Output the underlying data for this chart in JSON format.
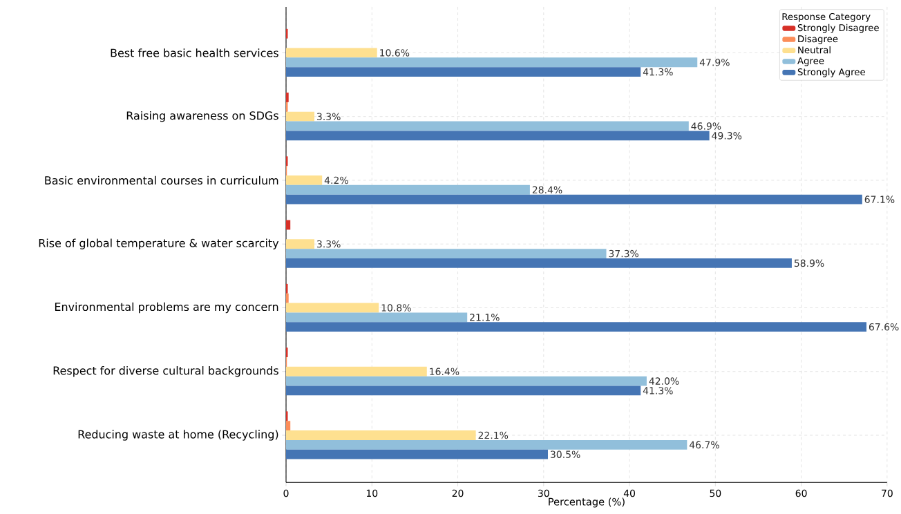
{
  "chart_data": {
    "type": "bar",
    "orientation": "horizontal",
    "xlabel": "Percentage (%)",
    "legend_title": "Response Category",
    "legend": "top right",
    "grid": true,
    "categories": [
      "Best free basic health services",
      "Raising awareness on SDGs",
      "Basic environmental courses in curriculum",
      "Rise of global temperature & water scarcity",
      "Environmental problems are my concern",
      "Respect for diverse cultural backgrounds",
      "Reducing waste at home (Recycling)"
    ],
    "xlim": [
      0,
      70
    ],
    "xticks": [
      0,
      10,
      20,
      30,
      40,
      50,
      60,
      70
    ],
    "series": [
      {
        "name": "Strongly Disagree",
        "color": "#d73027",
        "values": [
          0.2,
          0.3,
          0.2,
          0.5,
          0.2,
          0.2,
          0.2
        ],
        "value_labels": [
          null,
          null,
          null,
          null,
          null,
          null,
          null
        ]
      },
      {
        "name": "Disagree",
        "color": "#fc8d59",
        "values": [
          0,
          0.2,
          0.1,
          0,
          0.3,
          0.1,
          0.5
        ],
        "value_labels": [
          null,
          null,
          null,
          null,
          null,
          null,
          null
        ]
      },
      {
        "name": "Neutral",
        "color": "#fee090",
        "values": [
          10.6,
          3.3,
          4.2,
          3.3,
          10.8,
          16.4,
          22.1
        ],
        "value_labels": [
          "10.6%",
          "3.3%",
          "4.2%",
          "3.3%",
          "10.8%",
          "16.4%",
          "22.1%"
        ]
      },
      {
        "name": "Agree",
        "color": "#91bfdb",
        "values": [
          47.9,
          46.9,
          28.4,
          37.3,
          21.1,
          42.0,
          46.7
        ],
        "value_labels": [
          "47.9%",
          "46.9%",
          "28.4%",
          "37.3%",
          "21.1%",
          "42.0%",
          "46.7%"
        ]
      },
      {
        "name": "Strongly Agree",
        "color": "#4575b4",
        "values": [
          41.3,
          49.3,
          67.1,
          58.9,
          67.6,
          41.3,
          30.5
        ],
        "value_labels": [
          "41.3%",
          "49.3%",
          "67.1%",
          "58.9%",
          "67.6%",
          "41.3%",
          "30.5%"
        ]
      }
    ]
  }
}
